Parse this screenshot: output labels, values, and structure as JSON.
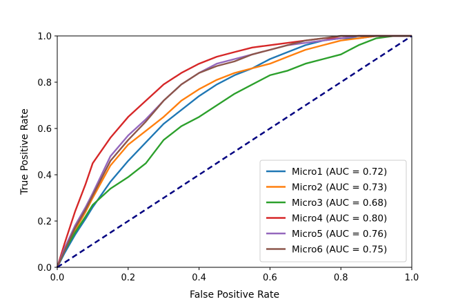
{
  "chart_data": {
    "type": "line",
    "title": "",
    "xlabel": "False Positive Rate",
    "ylabel": "True Positive Rate",
    "xlim": [
      0.0,
      1.0
    ],
    "ylim": [
      0.0,
      1.0
    ],
    "x_ticks": [
      "0.0",
      "0.2",
      "0.4",
      "0.6",
      "0.8",
      "1.0"
    ],
    "y_ticks": [
      "0.0",
      "0.2",
      "0.4",
      "0.6",
      "0.8",
      "1.0"
    ],
    "grid": false,
    "legend_position": "lower-right",
    "reference_line": {
      "name": "chance",
      "color": "#000080",
      "style": "dashed",
      "x": [
        0.0,
        1.0
      ],
      "y": [
        0.0,
        1.0
      ]
    },
    "series": [
      {
        "name": "Micro1 (AUC = 0.72)",
        "color": "#1f77b4",
        "x": [
          0.0,
          0.02,
          0.05,
          0.08,
          0.1,
          0.15,
          0.2,
          0.25,
          0.3,
          0.35,
          0.4,
          0.45,
          0.5,
          0.55,
          0.6,
          0.65,
          0.7,
          0.75,
          0.8,
          0.85,
          0.9,
          0.95,
          1.0
        ],
        "y": [
          0.0,
          0.06,
          0.14,
          0.21,
          0.26,
          0.37,
          0.46,
          0.54,
          0.62,
          0.68,
          0.74,
          0.79,
          0.83,
          0.86,
          0.9,
          0.93,
          0.96,
          0.98,
          0.99,
          0.99,
          1.0,
          1.0,
          1.0
        ]
      },
      {
        "name": "Micro2 (AUC = 0.73)",
        "color": "#ff7f0e",
        "x": [
          0.0,
          0.02,
          0.05,
          0.08,
          0.1,
          0.15,
          0.2,
          0.25,
          0.3,
          0.35,
          0.4,
          0.45,
          0.5,
          0.55,
          0.6,
          0.65,
          0.7,
          0.75,
          0.8,
          0.85,
          0.9,
          0.95,
          1.0
        ],
        "y": [
          0.0,
          0.07,
          0.16,
          0.24,
          0.3,
          0.44,
          0.53,
          0.59,
          0.65,
          0.72,
          0.77,
          0.81,
          0.84,
          0.86,
          0.88,
          0.91,
          0.94,
          0.96,
          0.98,
          0.99,
          1.0,
          1.0,
          1.0
        ]
      },
      {
        "name": "Micro3 (AUC = 0.68)",
        "color": "#2ca02c",
        "x": [
          0.0,
          0.02,
          0.05,
          0.08,
          0.1,
          0.15,
          0.2,
          0.25,
          0.3,
          0.35,
          0.4,
          0.45,
          0.5,
          0.55,
          0.6,
          0.65,
          0.7,
          0.75,
          0.8,
          0.85,
          0.9,
          0.95,
          1.0
        ],
        "y": [
          0.0,
          0.07,
          0.15,
          0.22,
          0.27,
          0.34,
          0.39,
          0.45,
          0.55,
          0.61,
          0.65,
          0.7,
          0.75,
          0.79,
          0.83,
          0.85,
          0.88,
          0.9,
          0.92,
          0.96,
          0.99,
          1.0,
          1.0
        ]
      },
      {
        "name": "Micro4 (AUC = 0.80)",
        "color": "#d62728",
        "x": [
          0.0,
          0.02,
          0.05,
          0.08,
          0.1,
          0.15,
          0.2,
          0.25,
          0.3,
          0.35,
          0.4,
          0.45,
          0.5,
          0.55,
          0.6,
          0.65,
          0.7,
          0.75,
          0.8,
          0.85,
          0.9,
          0.95,
          1.0
        ],
        "y": [
          0.0,
          0.1,
          0.24,
          0.36,
          0.45,
          0.56,
          0.65,
          0.72,
          0.79,
          0.84,
          0.88,
          0.91,
          0.93,
          0.95,
          0.96,
          0.97,
          0.98,
          0.99,
          0.99,
          1.0,
          1.0,
          1.0,
          1.0
        ]
      },
      {
        "name": "Micro5 (AUC = 0.76)",
        "color": "#9467bd",
        "x": [
          0.0,
          0.02,
          0.05,
          0.08,
          0.1,
          0.15,
          0.2,
          0.25,
          0.3,
          0.35,
          0.4,
          0.45,
          0.5,
          0.55,
          0.6,
          0.65,
          0.7,
          0.75,
          0.8,
          0.85,
          0.9,
          0.95,
          1.0
        ],
        "y": [
          0.0,
          0.08,
          0.18,
          0.26,
          0.32,
          0.48,
          0.57,
          0.64,
          0.72,
          0.79,
          0.84,
          0.88,
          0.9,
          0.92,
          0.94,
          0.96,
          0.97,
          0.98,
          0.99,
          1.0,
          1.0,
          1.0,
          1.0
        ]
      },
      {
        "name": "Micro6 (AUC = 0.75)",
        "color": "#8c564b",
        "x": [
          0.0,
          0.02,
          0.05,
          0.08,
          0.1,
          0.15,
          0.2,
          0.25,
          0.3,
          0.35,
          0.4,
          0.45,
          0.5,
          0.55,
          0.6,
          0.65,
          0.7,
          0.75,
          0.8,
          0.85,
          0.9,
          0.95,
          1.0
        ],
        "y": [
          0.0,
          0.07,
          0.17,
          0.25,
          0.31,
          0.46,
          0.55,
          0.63,
          0.72,
          0.79,
          0.84,
          0.87,
          0.89,
          0.92,
          0.94,
          0.96,
          0.98,
          0.99,
          1.0,
          1.0,
          1.0,
          1.0,
          1.0
        ]
      }
    ]
  }
}
